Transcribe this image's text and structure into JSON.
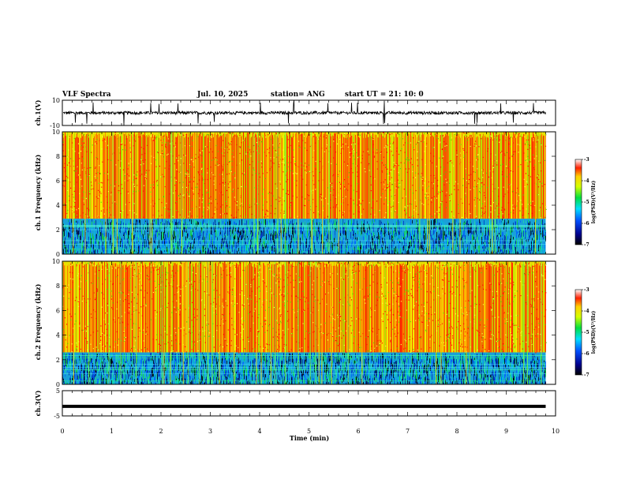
{
  "header": {
    "title": "VLF Spectra",
    "date": "Jul. 10, 2025",
    "station": "station= ANG",
    "start": "start UT = 21: 10: 0"
  },
  "chart_data": [
    {
      "type": "line",
      "panel": "ch1-waveform",
      "ylabel": "ch.1(V)",
      "ylim": [
        -10,
        10
      ],
      "y_ticks": [
        "10",
        "-10"
      ],
      "xlim": [
        0,
        10
      ],
      "baseline": 0,
      "noise_band": [
        -2,
        2
      ],
      "spike_range": [
        -10,
        10
      ]
    },
    {
      "type": "heatmap",
      "panel": "ch1-spectrogram",
      "ylabel": "ch.1 Frequency (kHz)",
      "ylim": [
        0,
        10
      ],
      "y_ticks": [
        "0",
        "2",
        "4",
        "6",
        "8",
        "10"
      ],
      "xlim": [
        0,
        10
      ],
      "data_end_min": 9.8,
      "low_band_top_khz": 2.9,
      "colorbar": {
        "label": "log(PSD)(V²/Hz)",
        "range": [
          -7,
          -3
        ],
        "ticks": [
          "-3",
          "-4",
          "-5",
          "-6",
          "-7"
        ]
      }
    },
    {
      "type": "heatmap",
      "panel": "ch2-spectrogram",
      "ylabel": "ch.2 Frequency (kHz)",
      "ylim": [
        0,
        10
      ],
      "y_ticks": [
        "0",
        "2",
        "4",
        "6",
        "8",
        "10"
      ],
      "xlim": [
        0,
        10
      ],
      "data_end_min": 9.8,
      "low_band_top_khz": 2.6,
      "colorbar": {
        "label": "log(PSD)(V²/Hz)",
        "range": [
          -7,
          -3
        ],
        "ticks": [
          "-3",
          "-4",
          "-5",
          "-6",
          "-7"
        ]
      }
    },
    {
      "type": "line",
      "panel": "ch3-waveform",
      "ylabel": "ch.3(V)",
      "ylim": [
        -5,
        5
      ],
      "y_ticks": [
        "5",
        "-5"
      ],
      "xlim": [
        0,
        10
      ],
      "constant_value": -1.2,
      "data_end_min": 9.8
    }
  ],
  "x_axis": {
    "label": "Time (min)",
    "ticks": [
      "0",
      "1",
      "2",
      "3",
      "4",
      "5",
      "6",
      "7",
      "8",
      "9",
      "10"
    ]
  }
}
